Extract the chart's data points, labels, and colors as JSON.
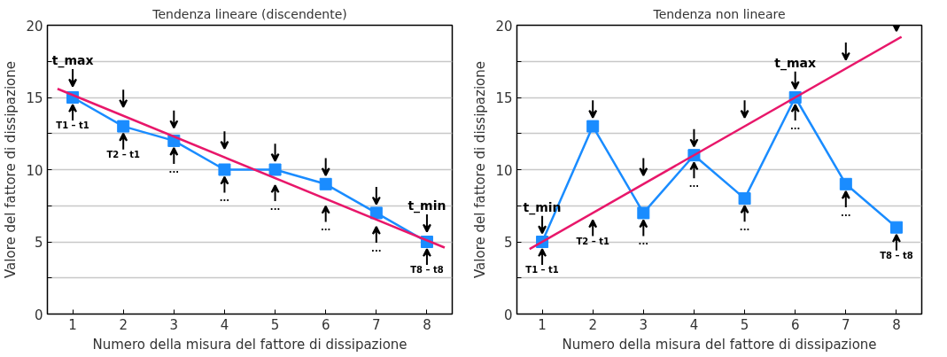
{
  "chart_data": [
    {
      "type": "line",
      "title": "Tendenza lineare (discendente)",
      "xlabel": "Numero della misura del fattore di dissipazione",
      "ylabel": "Valore del fattore di dissipazione",
      "x": [
        1,
        2,
        3,
        4,
        5,
        6,
        7,
        8
      ],
      "xlim": [
        0.5,
        8.5
      ],
      "xticks": [
        1,
        2,
        3,
        4,
        5,
        6,
        7,
        8
      ],
      "ylim": [
        0,
        20
      ],
      "yticks": [
        0,
        {
          "value": 2.5,
          "label": null
        },
        5,
        {
          "value": 7.5,
          "label": null
        },
        10,
        {
          "value": 12.5,
          "label": null
        },
        15,
        {
          "value": 17.5,
          "label": null
        },
        20
      ],
      "grid": "y",
      "marker": "square",
      "series": [
        {
          "color": "#1a8cff",
          "values": [
            15,
            13,
            12,
            10,
            10,
            9,
            7,
            5
          ]
        },
        {
          "type": "line",
          "marker": "none",
          "color": "#e8176a",
          "x": [
            0.7,
            8.35
          ],
          "values": [
            15.6,
            4.6
          ]
        }
      ],
      "annotations": [
        {
          "text": "t_max",
          "x": 1,
          "y": 15
        },
        {
          "text": "T1 – t1",
          "x": 1,
          "y": 15
        },
        {
          "text": "T2 – t1",
          "x": 2,
          "y": 13
        },
        {
          "text": "...",
          "x": 3,
          "y": 12
        },
        {
          "text": "...",
          "x": 4,
          "y": 10
        },
        {
          "text": "...",
          "x": 5,
          "y": 9.4
        },
        {
          "text": "...",
          "x": 6,
          "y": 8
        },
        {
          "text": "...",
          "x": 7,
          "y": 6.5
        },
        {
          "text": "t_min",
          "x": 8,
          "y": 5
        },
        {
          "text": "T8 – t8",
          "x": 8,
          "y": 5
        }
      ]
    },
    {
      "type": "line",
      "title": "Tendenza non lineare",
      "xlabel": "Numero della misura del fattore di dissipazione",
      "ylabel": "Valore del fattore di dissipazione",
      "x": [
        1,
        2,
        3,
        4,
        5,
        6,
        7,
        8
      ],
      "xlim": [
        0.5,
        8.5
      ],
      "xticks": [
        1,
        2,
        3,
        4,
        5,
        6,
        7,
        8
      ],
      "ylim": [
        0,
        20
      ],
      "yticks": [
        0,
        {
          "value": 2.5,
          "label": null
        },
        5,
        {
          "value": 7.5,
          "label": null
        },
        10,
        {
          "value": 12.5,
          "label": null
        },
        15,
        {
          "value": 17.5,
          "label": null
        },
        20
      ],
      "grid": "y",
      "marker": "square",
      "series": [
        {
          "color": "#1a8cff",
          "values": [
            5,
            13,
            7,
            11,
            8,
            15,
            9,
            6
          ]
        },
        {
          "type": "line",
          "marker": "none",
          "color": "#e8176a",
          "x": [
            0.75,
            8.1
          ],
          "values": [
            4.5,
            19.2
          ]
        }
      ],
      "annotations": [
        {
          "text": "t_min",
          "x": 1,
          "y": 5
        },
        {
          "text": "T1 – t1",
          "x": 1,
          "y": 5
        },
        {
          "text": "T2 – t1",
          "x": 2,
          "y": 7
        },
        {
          "text": "...",
          "x": 3,
          "y": 7
        },
        {
          "text": "...",
          "x": 4,
          "y": 11
        },
        {
          "text": "...",
          "x": 5,
          "y": 8
        },
        {
          "text": "t_max",
          "x": 6,
          "y": 15
        },
        {
          "text": "...",
          "x": 6,
          "y": 15
        },
        {
          "text": "...",
          "x": 7,
          "y": 9
        },
        {
          "text": "T8 – t8",
          "x": 8,
          "y": 6
        }
      ]
    }
  ]
}
